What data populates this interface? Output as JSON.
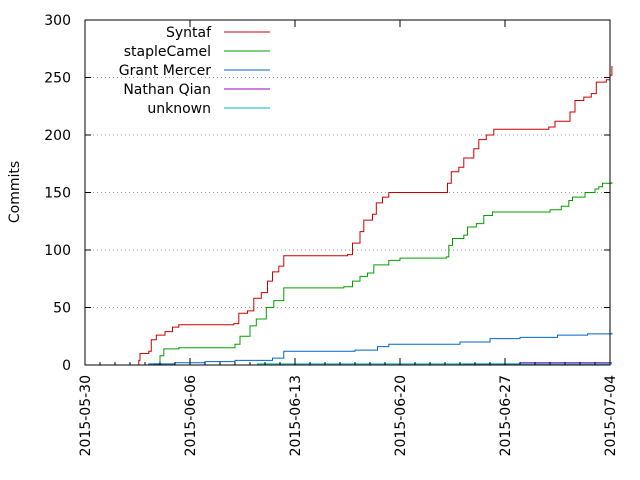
{
  "chart_data": {
    "type": "line",
    "title": "",
    "xlabel": "",
    "ylabel": "Commits",
    "xlim": [
      "2015-05-30",
      "2015-07-04"
    ],
    "ylim": [
      0,
      300
    ],
    "yticks": [
      0,
      50,
      100,
      150,
      200,
      250,
      300
    ],
    "xticks": [
      "2015-05-30",
      "2015-06-06",
      "2015-06-13",
      "2015-06-20",
      "2015-06-27",
      "2015-07-04"
    ],
    "grid": "horizontal dotted",
    "legend_position": "top-left",
    "series": [
      {
        "name": "Syntaf",
        "color": "#cc0000",
        "points": [
          [
            "2015-06-02T12:00",
            0
          ],
          [
            "2015-06-02T14:00",
            4
          ],
          [
            "2015-06-02T16:00",
            10
          ],
          [
            "2015-06-03T06:00",
            12
          ],
          [
            "2015-06-03T10:00",
            22
          ],
          [
            "2015-06-03T18:00",
            26
          ],
          [
            "2015-06-04T08:00",
            29
          ],
          [
            "2015-06-04T20:00",
            33
          ],
          [
            "2015-06-05T06:00",
            35
          ],
          [
            "2015-06-08T22:00",
            36
          ],
          [
            "2015-06-09T06:00",
            45
          ],
          [
            "2015-06-09T20:00",
            47
          ],
          [
            "2015-06-10T06:00",
            58
          ],
          [
            "2015-06-10T18:00",
            63
          ],
          [
            "2015-06-11T04:00",
            73
          ],
          [
            "2015-06-11T12:00",
            81
          ],
          [
            "2015-06-11T22:00",
            86
          ],
          [
            "2015-06-12T06:00",
            95
          ],
          [
            "2015-06-16T12:00",
            96
          ],
          [
            "2015-06-16T20:00",
            106
          ],
          [
            "2015-06-17T08:00",
            116
          ],
          [
            "2015-06-17T14:00",
            126
          ],
          [
            "2015-06-18T04:00",
            131
          ],
          [
            "2015-06-18T10:00",
            141
          ],
          [
            "2015-06-18T20:00",
            146
          ],
          [
            "2015-06-19T06:00",
            150
          ],
          [
            "2015-06-23T04:00",
            158
          ],
          [
            "2015-06-23T10:00",
            168
          ],
          [
            "2015-06-23T22:00",
            172
          ],
          [
            "2015-06-24T06:00",
            180
          ],
          [
            "2015-06-24T22:00",
            188
          ],
          [
            "2015-06-25T06:00",
            196
          ],
          [
            "2015-06-25T18:00",
            200
          ],
          [
            "2015-06-26T06:00",
            205
          ],
          [
            "2015-06-29T22:00",
            207
          ],
          [
            "2015-06-30T08:00",
            212
          ],
          [
            "2015-07-01T08:00",
            220
          ],
          [
            "2015-07-01T16:00",
            230
          ],
          [
            "2015-07-02T06:00",
            233
          ],
          [
            "2015-07-02T18:00",
            236
          ],
          [
            "2015-07-03T02:00",
            246
          ],
          [
            "2015-07-03T18:00",
            248
          ],
          [
            "2015-07-04T00:00",
            252
          ],
          [
            "2015-07-04T03:00",
            260
          ]
        ]
      },
      {
        "name": "stapleCamel",
        "color": "#00a000",
        "points": [
          [
            "2015-06-03T10:00",
            0
          ],
          [
            "2015-06-03T14:00",
            1
          ],
          [
            "2015-06-04T00:00",
            8
          ],
          [
            "2015-06-04T06:00",
            14
          ],
          [
            "2015-06-05T06:00",
            15
          ],
          [
            "2015-06-09T00:00",
            18
          ],
          [
            "2015-06-09T08:00",
            25
          ],
          [
            "2015-06-10T00:00",
            34
          ],
          [
            "2015-06-10T10:00",
            40
          ],
          [
            "2015-06-11T02:00",
            50
          ],
          [
            "2015-06-11T14:00",
            56
          ],
          [
            "2015-06-12T06:00",
            67
          ],
          [
            "2015-06-16T06:00",
            68
          ],
          [
            "2015-06-16T20:00",
            73
          ],
          [
            "2015-06-17T08:00",
            77
          ],
          [
            "2015-06-17T20:00",
            80
          ],
          [
            "2015-06-18T06:00",
            87
          ],
          [
            "2015-06-19T06:00",
            91
          ],
          [
            "2015-06-20T00:00",
            93
          ],
          [
            "2015-06-23T02:00",
            94
          ],
          [
            "2015-06-23T06:00",
            104
          ],
          [
            "2015-06-23T12:00",
            110
          ],
          [
            "2015-06-24T06:00",
            113
          ],
          [
            "2015-06-24T12:00",
            120
          ],
          [
            "2015-06-25T02:00",
            123
          ],
          [
            "2015-06-25T14:00",
            130
          ],
          [
            "2015-06-26T04:00",
            133
          ],
          [
            "2015-06-30T00:00",
            135
          ],
          [
            "2015-06-30T18:00",
            138
          ],
          [
            "2015-07-01T06:00",
            143
          ],
          [
            "2015-07-01T12:00",
            146
          ],
          [
            "2015-07-02T08:00",
            150
          ],
          [
            "2015-07-03T00:00",
            153
          ],
          [
            "2015-07-03T06:00",
            155
          ],
          [
            "2015-07-03T12:00",
            158
          ],
          [
            "2015-07-04T03:00",
            159
          ]
        ]
      },
      {
        "name": "Grant Mercer",
        "color": "#0066cc",
        "points": [
          [
            "2015-06-03T00:00",
            0
          ],
          [
            "2015-06-03T06:00",
            1
          ],
          [
            "2015-06-05T00:00",
            2
          ],
          [
            "2015-06-07T00:00",
            3
          ],
          [
            "2015-06-09T00:00",
            4
          ],
          [
            "2015-06-11T12:00",
            6
          ],
          [
            "2015-06-12T06:00",
            12
          ],
          [
            "2015-06-17T00:00",
            13
          ],
          [
            "2015-06-18T12:00",
            16
          ],
          [
            "2015-06-19T06:00",
            18
          ],
          [
            "2015-06-24T00:00",
            20
          ],
          [
            "2015-06-26T00:00",
            23
          ],
          [
            "2015-06-28T00:00",
            24
          ],
          [
            "2015-06-30T12:00",
            26
          ],
          [
            "2015-07-02T12:00",
            27
          ],
          [
            "2015-07-04T03:00",
            28
          ]
        ]
      },
      {
        "name": "Nathan Qian",
        "color": "#9900cc",
        "points": [
          [
            "2015-06-24T00:00",
            0
          ],
          [
            "2015-06-24T06:00",
            1
          ],
          [
            "2015-06-28T00:00",
            2
          ],
          [
            "2015-07-04T03:00",
            2
          ]
        ]
      },
      {
        "name": "unknown",
        "color": "#00bbbb",
        "points": [
          [
            "2015-06-09T12:00",
            0
          ],
          [
            "2015-06-10T12:00",
            1
          ],
          [
            "2015-07-04T03:00",
            1
          ]
        ]
      }
    ]
  }
}
